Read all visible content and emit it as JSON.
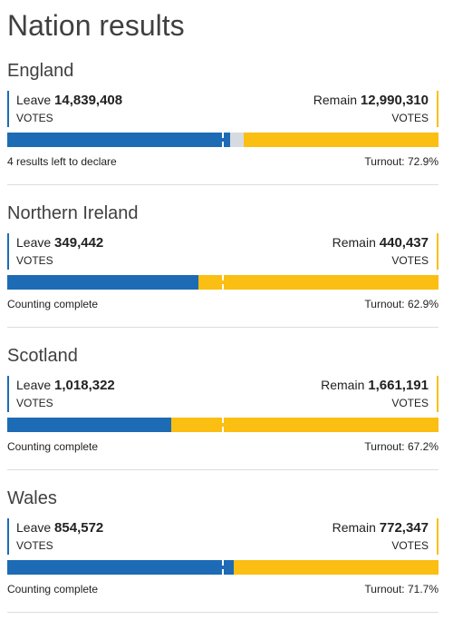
{
  "page": {
    "title": "Nation results"
  },
  "colors": {
    "leave": "#1d6bb5",
    "remain": "#fbbe12",
    "undeclared": "#d6dbe0"
  },
  "labels": {
    "leave": "Leave",
    "remain": "Remain",
    "votes": "VOTES"
  },
  "nations": [
    {
      "name": "England",
      "leave_votes": "14,839,408",
      "remain_votes": "12,990,310",
      "leave_share": 0.5162,
      "remain_share": 0.4519,
      "status": "4 results left to declare",
      "turnout": "Turnout: 72.9%"
    },
    {
      "name": "Northern Ireland",
      "leave_votes": "349,442",
      "remain_votes": "440,437",
      "leave_share": 0.4424,
      "remain_share": 0.5576,
      "status": "Counting complete",
      "turnout": "Turnout: 62.9%"
    },
    {
      "name": "Scotland",
      "leave_votes": "1,018,322",
      "remain_votes": "1,661,191",
      "leave_share": 0.38,
      "remain_share": 0.62,
      "status": "Counting complete",
      "turnout": "Turnout: 67.2%"
    },
    {
      "name": "Wales",
      "leave_votes": "854,572",
      "remain_votes": "772,347",
      "leave_share": 0.5253,
      "remain_share": 0.4747,
      "status": "Counting complete",
      "turnout": "Turnout: 71.7%"
    }
  ]
}
